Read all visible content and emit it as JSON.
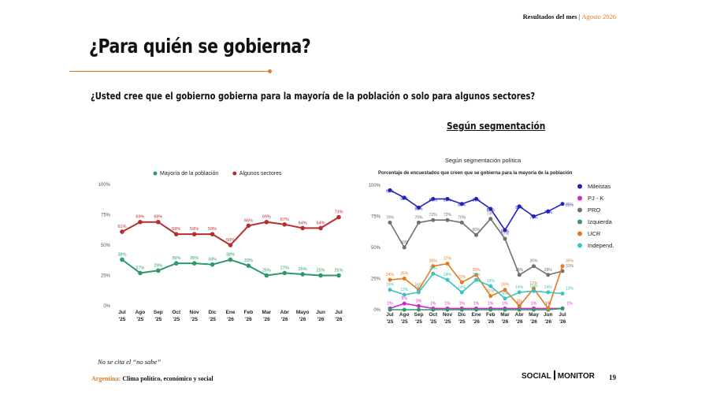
{
  "header": {
    "section": "Resultados del mes",
    "separator": "|",
    "month": "Agosto 2026"
  },
  "page_title": "¿Para quién se gobierna?",
  "question": "¿Usted cree que el gobierno gobierna para la mayoría de la población o solo para algunos sectores?",
  "segment_heading": "Según segmentación",
  "footnote": "No se cita el “no sabe”",
  "footer": {
    "country": "Argentina:",
    "topic": "Clima político, económico y social",
    "page_number": "19"
  },
  "logos": {
    "social": "SOCIAL",
    "monitor": "MONITOR"
  },
  "colors": {
    "accent": "#e07b24"
  },
  "chart_data": [
    {
      "type": "line",
      "x_labels": [
        [
          "Jul",
          "'25"
        ],
        [
          "Ago",
          "'25"
        ],
        [
          "Sep",
          "'25"
        ],
        [
          "Oct",
          "'25"
        ],
        [
          "Nov",
          "'25"
        ],
        [
          "Dic",
          "'25"
        ],
        [
          "Ene",
          "'26"
        ],
        [
          "Feb",
          "'26"
        ],
        [
          "Mar",
          "'26"
        ],
        [
          "Abr",
          "'26"
        ],
        [
          "Mayo",
          "'26"
        ],
        [
          "Jun",
          "'26"
        ],
        [
          "Jul",
          "'26"
        ]
      ],
      "ylim": [
        0,
        100
      ],
      "y_ticks": [
        "0%",
        "25%",
        "50%",
        "75%",
        "100%"
      ],
      "legend_position": "top",
      "grid": false,
      "series": [
        {
          "name": "Mayoría de la población",
          "color": "#2e9a6a",
          "values": [
            38,
            27,
            29,
            35,
            35,
            34,
            38,
            33,
            25,
            27,
            26,
            25,
            25
          ],
          "labels": [
            "38%",
            "27%",
            "29%",
            "35%",
            "35%",
            "34%",
            "38%",
            "33%",
            "25%",
            "27%",
            "26%",
            "25%",
            "25%"
          ]
        },
        {
          "name": "Algunos sectores",
          "color": "#b52e2e",
          "values": [
            61,
            69,
            69,
            59,
            59,
            59,
            50,
            66,
            69,
            67,
            64,
            64,
            73
          ],
          "labels": [
            "61%",
            "69%",
            "69%",
            "59%",
            "59%",
            "59%",
            "50%",
            "66%",
            "69%",
            "67%",
            "64%",
            "64%",
            "73%"
          ]
        }
      ]
    },
    {
      "type": "line",
      "title": "Según segmentación política",
      "subtitle": "Porcentaje de encuestados que creen que se gobierna para la mayoría de la población",
      "x_labels": [
        [
          "Jul",
          "'25"
        ],
        [
          "Ago",
          "'25"
        ],
        [
          "Sep",
          "'25"
        ],
        [
          "Oct",
          "'25"
        ],
        [
          "Nov",
          "'25"
        ],
        [
          "Dic",
          "'25"
        ],
        [
          "Ene",
          "'26"
        ],
        [
          "Feb",
          "'26"
        ],
        [
          "Mar",
          "'26"
        ],
        [
          "Abr",
          "'26"
        ],
        [
          "May",
          "'26"
        ],
        [
          "Jun",
          "'26"
        ],
        [
          "Jul",
          "'26"
        ]
      ],
      "ylim": [
        0,
        100
      ],
      "y_ticks": [
        "0%",
        "25%",
        "50%",
        "75%",
        "100%"
      ],
      "legend_position": "right",
      "grid": false,
      "series": [
        {
          "name": "Mileistas",
          "color": "#1f22b8",
          "values": [
            96,
            90,
            82,
            89,
            89,
            85,
            89,
            81,
            64,
            83,
            75,
            79,
            85
          ],
          "labels": [
            "96%",
            "90%",
            "82%",
            "89%",
            "89%",
            "85%",
            "89%",
            "81%",
            "64%",
            "83%",
            "75%",
            "79%",
            "85%"
          ]
        },
        {
          "name": "PJ - K",
          "color": "#d61fd6",
          "values": [
            1,
            5,
            3,
            1,
            1,
            1,
            1,
            1,
            1,
            1,
            1,
            1,
            1
          ],
          "labels": [
            "1%",
            "5%",
            "3%",
            "1%",
            "1%",
            "1%",
            "1%",
            "1%",
            "1%",
            "1%",
            "1%",
            "1%",
            "1%"
          ]
        },
        {
          "name": "PRO",
          "color": "#707070",
          "values": [
            70,
            50,
            70,
            72,
            72,
            70,
            60,
            73,
            57,
            28,
            35,
            28,
            31
          ],
          "labels": [
            "70%",
            "50%",
            "70%",
            "72%",
            "72%",
            "70%",
            "60%",
            "73%",
            "57%",
            "28%",
            "35%",
            "28%",
            "31%"
          ]
        },
        {
          "name": "Izquierda",
          "color": "#2e9a6a",
          "values": [
            0,
            0,
            0,
            0,
            0,
            0,
            0,
            0,
            0,
            0,
            0,
            0,
            1
          ],
          "labels": []
        },
        {
          "name": "UCR",
          "color": "#e07b24",
          "values": [
            24,
            25,
            16,
            35,
            37,
            22,
            28,
            11,
            16,
            3,
            17,
            1,
            35
          ],
          "labels": [
            "24%",
            "25%",
            "16%",
            "35%",
            "37%",
            "22%",
            "28%",
            "11%",
            "16%",
            "3%",
            "17%",
            "1%",
            "35%"
          ]
        },
        {
          "name": "Independ.",
          "color": "#3ec3c3",
          "values": [
            16,
            12,
            14,
            29,
            24,
            14,
            24,
            19,
            9,
            14,
            15,
            14,
            13
          ],
          "labels": [
            "16%",
            "12%",
            "14%",
            "29%",
            "24%",
            "14%",
            "24%",
            "19%",
            "9%",
            "14%",
            "15%",
            "14%",
            "13%"
          ]
        }
      ]
    }
  ]
}
